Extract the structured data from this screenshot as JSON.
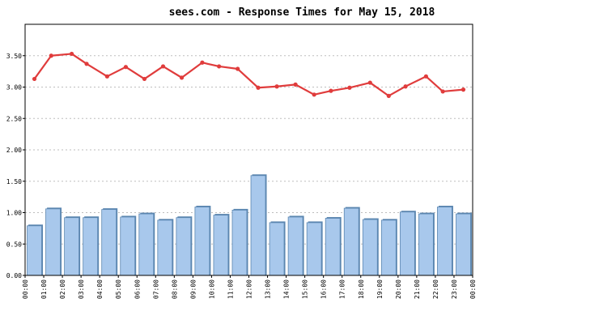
{
  "chart_data": {
    "type": "bar",
    "title": "sees.com - Response Times for May 15, 2018",
    "xlabel": "",
    "ylabel": "",
    "ylim": [
      0,
      4.0
    ],
    "y_ticks": [
      "0.00",
      "0.50",
      "1.00",
      "1.50",
      "2.00",
      "2.50",
      "3.00",
      "3.50"
    ],
    "y_tick_values": [
      0,
      0.5,
      1.0,
      1.5,
      2.0,
      2.5,
      3.0,
      3.5
    ],
    "x_ticks": [
      "00:00",
      "01:00",
      "02:00",
      "03:00",
      "04:00",
      "05:00",
      "06:00",
      "07:00",
      "08:00",
      "09:00",
      "10:00",
      "11:00",
      "12:00",
      "13:00",
      "14:00",
      "15:00",
      "16:00",
      "17:00",
      "18:00",
      "19:00",
      "20:00",
      "21:00",
      "22:00",
      "23:00",
      "00:00"
    ],
    "grid": "horizontal-dotted",
    "legend": "none",
    "series": [
      {
        "type": "bar",
        "color": "#a8c8ec",
        "edge_color": "#5b86b0",
        "values": [
          0.79,
          1.06,
          0.92,
          0.92,
          1.05,
          0.93,
          0.98,
          0.88,
          0.92,
          1.09,
          0.96,
          1.04,
          1.59,
          0.84,
          0.93,
          0.84,
          0.91,
          1.07,
          0.89,
          0.88,
          1.01,
          0.98,
          1.09,
          0.98
        ]
      },
      {
        "type": "line",
        "color": "#e03c3c",
        "x_positions": [
          0.5,
          1.4,
          2.5,
          3.3,
          4.4,
          5.4,
          6.4,
          7.4,
          8.4,
          9.5,
          10.4,
          11.4,
          12.5,
          13.5,
          14.5,
          15.5,
          16.4,
          17.4,
          18.5,
          19.5,
          20.4,
          21.5,
          22.4,
          23.5
        ],
        "values": [
          3.13,
          3.5,
          3.53,
          3.37,
          3.17,
          3.32,
          3.13,
          3.33,
          3.15,
          3.39,
          3.33,
          3.29,
          2.99,
          3.01,
          3.04,
          2.88,
          2.94,
          2.99,
          3.07,
          2.86,
          3.01,
          3.17,
          2.93,
          2.96
        ]
      }
    ],
    "colors": {
      "axis": "#000000",
      "grid": "#bdbdbd",
      "plot_background": "#ffffff"
    }
  }
}
